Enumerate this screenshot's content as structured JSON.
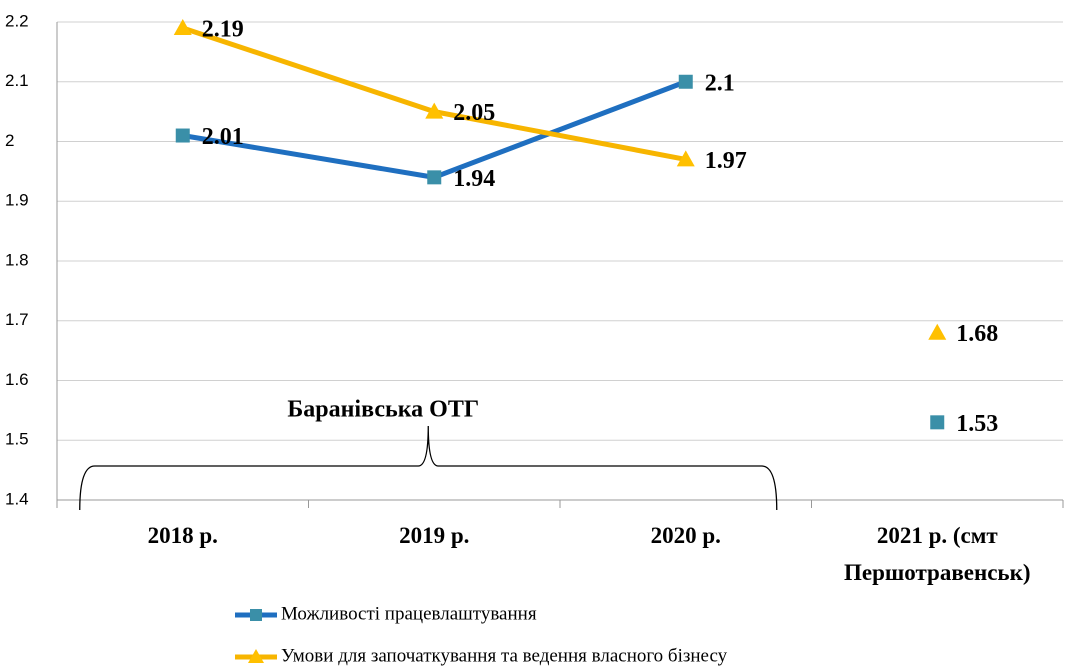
{
  "chart_data": {
    "type": "line",
    "categories": [
      "2018 р.",
      "2019 р.",
      "2020 р.",
      "2021 р. (смт Першотравенськ)"
    ],
    "series": [
      {
        "name": "Можливості працевлаштування",
        "color": "#1f6fc0",
        "marker": "square",
        "marker_color": "#3a8fa8",
        "values": [
          2.01,
          1.94,
          2.1,
          1.53
        ]
      },
      {
        "name": "Умови для започаткування та ведення власного бізнесу",
        "color": "#f7b500",
        "marker": "triangle",
        "marker_color": "#ffc000",
        "values": [
          2.19,
          2.05,
          1.97,
          1.68
        ]
      }
    ],
    "group": {
      "label": "Баранівська ОТГ",
      "span": [
        "2018 р.",
        "2020 р."
      ]
    },
    "ylim": [
      1.4,
      2.2
    ],
    "yticks": [
      1.4,
      1.5,
      1.6,
      1.7,
      1.8,
      1.9,
      2,
      2.1,
      2.2
    ],
    "grid": true
  }
}
